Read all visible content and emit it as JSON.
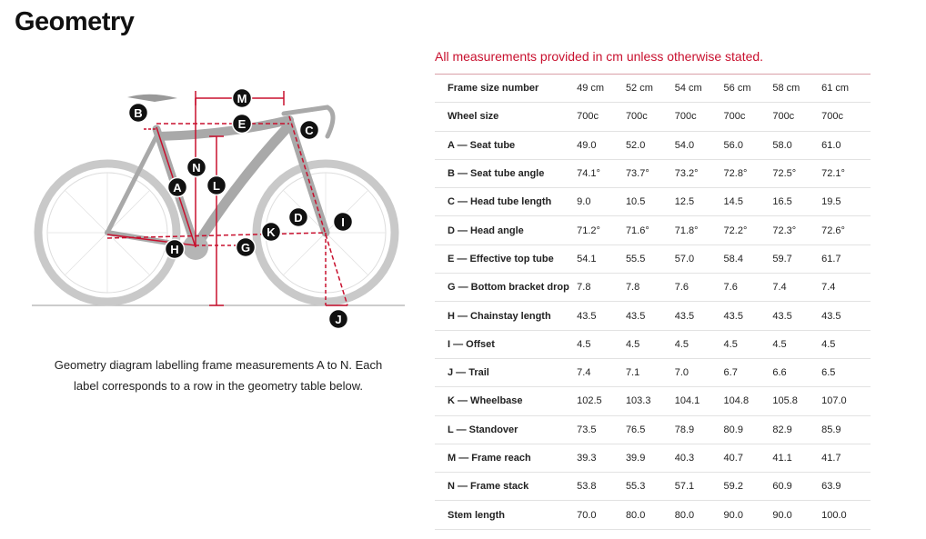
{
  "header": {
    "title": "Geometry"
  },
  "diagram": {
    "labels": [
      "M",
      "B",
      "E",
      "C",
      "N",
      "A",
      "L",
      "D",
      "I",
      "K",
      "H",
      "G",
      "J"
    ],
    "caption": "Geometry diagram labelling frame measurements A to N. Each label corresponds to a row in the geometry table below."
  },
  "note": "All measurements provided in cm unless otherwise stated.",
  "table": {
    "header": [
      "Frame size number",
      "49 cm",
      "52 cm",
      "54 cm",
      "56 cm",
      "58 cm",
      "61 cm"
    ],
    "rows": [
      [
        "Wheel size",
        "700c",
        "700c",
        "700c",
        "700c",
        "700c",
        "700c"
      ],
      [
        "A — Seat tube",
        "49.0",
        "52.0",
        "54.0",
        "56.0",
        "58.0",
        "61.0"
      ],
      [
        "B — Seat tube angle",
        "74.1°",
        "73.7°",
        "73.2°",
        "72.8°",
        "72.5°",
        "72.1°"
      ],
      [
        "C — Head tube length",
        "9.0",
        "10.5",
        "12.5",
        "14.5",
        "16.5",
        "19.5"
      ],
      [
        "D — Head angle",
        "71.2°",
        "71.6°",
        "71.8°",
        "72.2°",
        "72.3°",
        "72.6°"
      ],
      [
        "E — Effective top tube",
        "54.1",
        "55.5",
        "57.0",
        "58.4",
        "59.7",
        "61.7"
      ],
      [
        "G — Bottom bracket drop",
        "7.8",
        "7.8",
        "7.6",
        "7.6",
        "7.4",
        "7.4"
      ],
      [
        "H — Chainstay length",
        "43.5",
        "43.5",
        "43.5",
        "43.5",
        "43.5",
        "43.5"
      ],
      [
        "I — Offset",
        "4.5",
        "4.5",
        "4.5",
        "4.5",
        "4.5",
        "4.5"
      ],
      [
        "J — Trail",
        "7.4",
        "7.1",
        "7.0",
        "6.7",
        "6.6",
        "6.5"
      ],
      [
        "K — Wheelbase",
        "102.5",
        "103.3",
        "104.1",
        "104.8",
        "105.8",
        "107.0"
      ],
      [
        "L — Standover",
        "73.5",
        "76.5",
        "78.9",
        "80.9",
        "82.9",
        "85.9"
      ],
      [
        "M — Frame reach",
        "39.3",
        "39.9",
        "40.3",
        "40.7",
        "41.1",
        "41.7"
      ],
      [
        "N — Frame stack",
        "53.8",
        "55.3",
        "57.1",
        "59.2",
        "60.9",
        "63.9"
      ],
      [
        "Stem length",
        "70.0",
        "80.0",
        "80.0",
        "90.0",
        "90.0",
        "100.0"
      ]
    ]
  }
}
